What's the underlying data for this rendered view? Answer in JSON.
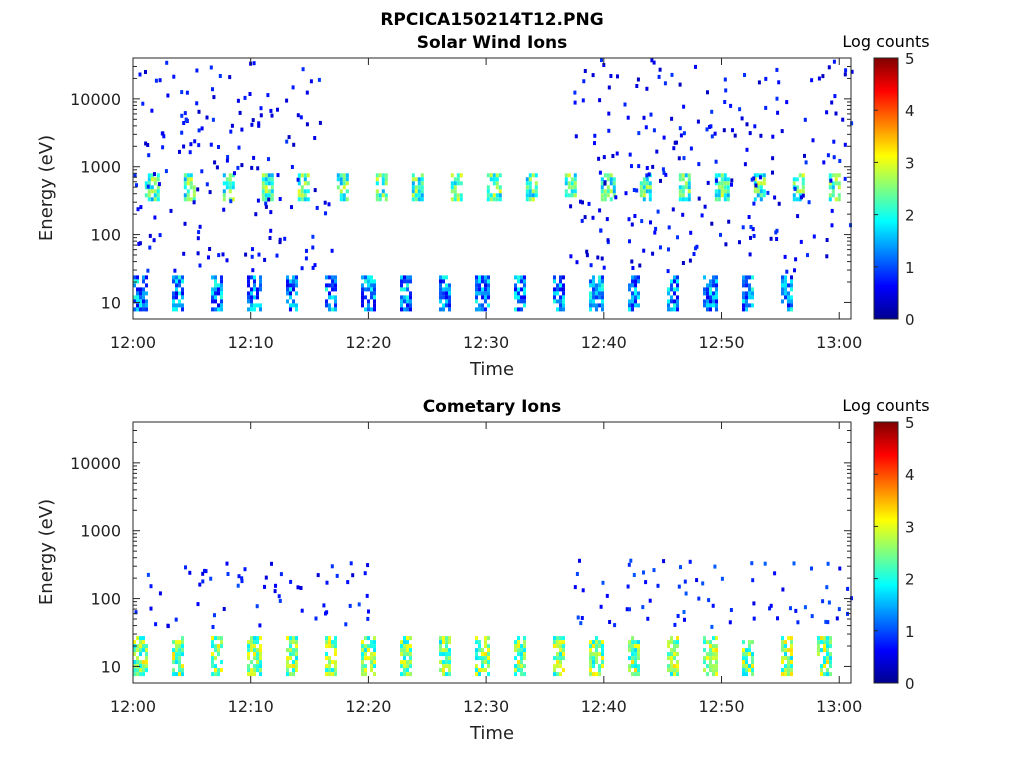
{
  "figure": {
    "title": "RPCICA150214T12.PNG"
  },
  "chart_data": [
    {
      "type": "heatmap",
      "title": "Solar Wind Ions",
      "xlabel": "Time",
      "ylabel": "Energy (eV)",
      "x_tick_labels": [
        "12:00",
        "12:10",
        "12:20",
        "12:30",
        "12:40",
        "12:50",
        "13:00"
      ],
      "x_range": [
        "12:00",
        "13:01"
      ],
      "y_scale": "log",
      "y_tick_labels": [
        "10",
        "100",
        "1000",
        "10000"
      ],
      "y_range": [
        5.7,
        40000
      ],
      "colorbar": {
        "label": "Log counts",
        "ticks": [
          "0",
          "1",
          "2",
          "3",
          "4",
          "5"
        ],
        "range": [
          0,
          5
        ],
        "colormap": "jet"
      },
      "features": [
        {
          "kind": "band",
          "from": "12:00",
          "to": "12:58",
          "energy_range": [
            8,
            25
          ],
          "level": 1.3,
          "note": "periodic low-energy bursts"
        },
        {
          "kind": "band",
          "from": "12:01",
          "to": "13:00",
          "energy_range": [
            350,
            800
          ],
          "level": 2.2
        },
        {
          "kind": "scatter",
          "from": "12:00",
          "to": "12:17",
          "energy_range": [
            30,
            40000
          ],
          "level": 0.3
        },
        {
          "kind": "scatter",
          "from": "12:37",
          "to": "13:01",
          "energy_range": [
            30,
            40000
          ],
          "level": 0.3
        }
      ]
    },
    {
      "type": "heatmap",
      "title": "Cometary Ions",
      "xlabel": "Time",
      "ylabel": "Energy (eV)",
      "x_tick_labels": [
        "12:00",
        "12:10",
        "12:20",
        "12:30",
        "12:40",
        "12:50",
        "13:00"
      ],
      "x_range": [
        "12:00",
        "13:01"
      ],
      "y_scale": "log",
      "y_tick_labels": [
        "10",
        "100",
        "1000",
        "10000"
      ],
      "y_range": [
        5.7,
        40000
      ],
      "colorbar": {
        "label": "Log counts",
        "ticks": [
          "0",
          "1",
          "2",
          "3",
          "4",
          "5"
        ],
        "range": [
          0,
          5
        ],
        "colormap": "jet"
      },
      "features": [
        {
          "kind": "band",
          "from": "12:00",
          "to": "13:00",
          "energy_range": [
            8,
            28
          ],
          "level": 2.5,
          "note": "periodic bursts"
        },
        {
          "kind": "scatter",
          "from": "12:00",
          "to": "12:20",
          "energy_range": [
            40,
            400
          ],
          "level": 0.4
        },
        {
          "kind": "scatter",
          "from": "12:37",
          "to": "13:01",
          "energy_range": [
            40,
            400
          ],
          "level": 0.5
        }
      ]
    }
  ],
  "colors": {
    "jet_low": "#00008f",
    "jet_mid": "#7fff7f",
    "jet_high": "#800000"
  }
}
